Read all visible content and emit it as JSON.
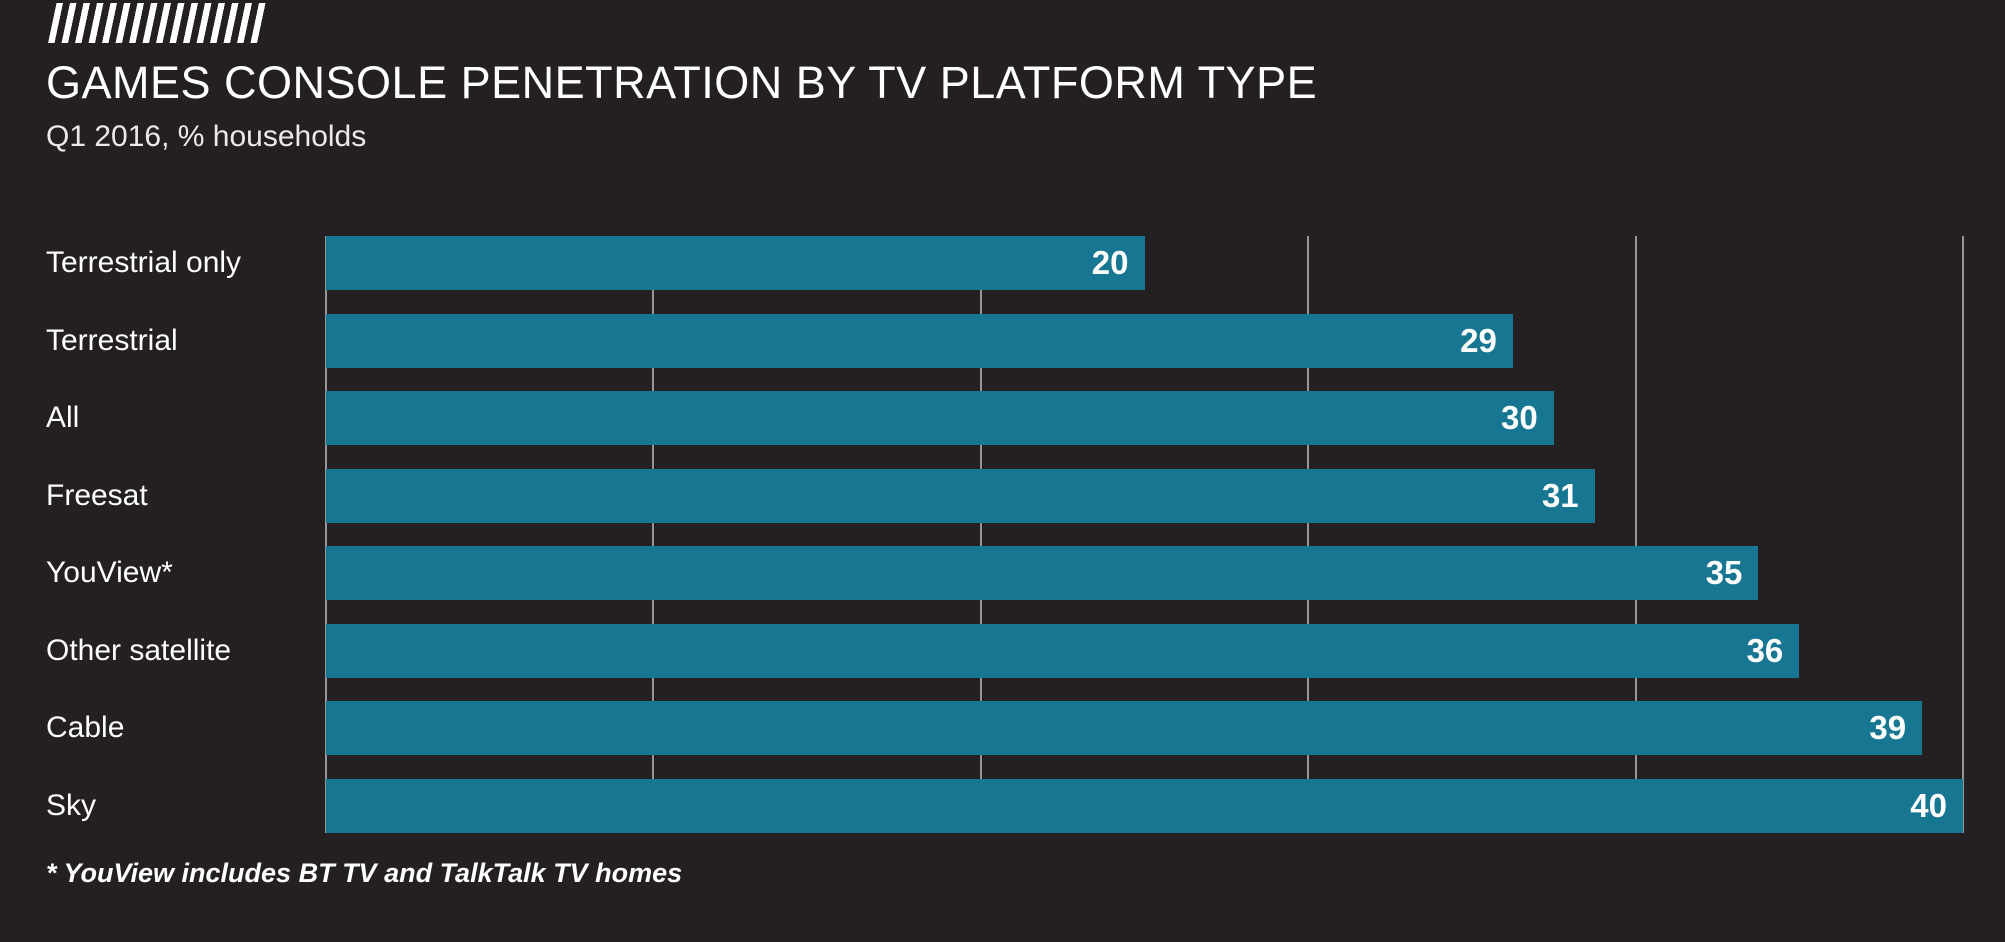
{
  "header": {
    "logo": "diagonal-hatch-logo",
    "title": "GAMES CONSOLE PENETRATION BY TV PLATFORM TYPE",
    "subtitle": "Q1 2016, % households"
  },
  "footnote": "* YouView includes BT TV and TalkTalk TV homes",
  "colors": {
    "background": "#242021",
    "bar": "#177692",
    "gridline": "#969696",
    "title_text": "#ffffff",
    "subtitle_text": "#ece9e9",
    "value_label_text": "#ffffff"
  },
  "chart_data": {
    "type": "bar",
    "orientation": "horizontal",
    "title": "GAMES CONSOLE PENETRATION BY TV PLATFORM TYPE",
    "subtitle": "Q1 2016, % households",
    "xlabel": "% households",
    "ylabel": "TV platform type",
    "categories": [
      "Terrestrial only",
      "Terrestrial",
      "All",
      "Freesat",
      "YouView*",
      "Other satellite",
      "Cable",
      "Sky"
    ],
    "values": [
      20,
      29,
      30,
      31,
      35,
      36,
      39,
      40
    ],
    "xlim": [
      0,
      40
    ],
    "gridline_values": [
      0,
      8,
      16,
      24,
      32,
      40
    ],
    "grid": "vertical lines behind bars, no tick labels",
    "legend": "none",
    "value_labels": "white bold, inside right end of each bar",
    "footnote": "* YouView includes BT TV and TalkTalk TV homes"
  }
}
